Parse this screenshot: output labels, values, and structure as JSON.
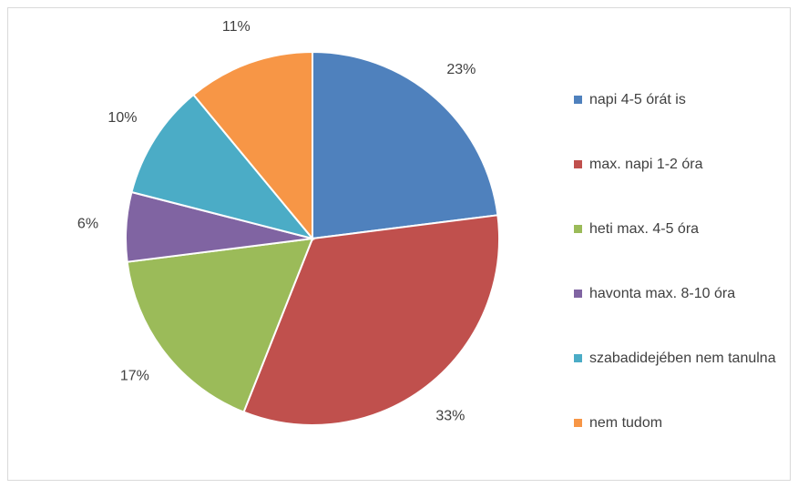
{
  "chart_data": {
    "type": "pie",
    "categories": [
      "napi 4-5 órát is",
      "max. napi 1-2 óra",
      "heti max. 4-5 óra",
      "havonta max. 8-10 óra",
      "szabadidejében nem tanulna",
      "nem tudom"
    ],
    "values": [
      23,
      33,
      17,
      6,
      10,
      11
    ],
    "value_labels": [
      "23%",
      "33%",
      "17%",
      "6%",
      "10%",
      "11%"
    ],
    "colors": [
      "#4f81bd",
      "#c0504d",
      "#9bbb59",
      "#8064a2",
      "#4bacc6",
      "#f79646"
    ],
    "legend": "right"
  }
}
